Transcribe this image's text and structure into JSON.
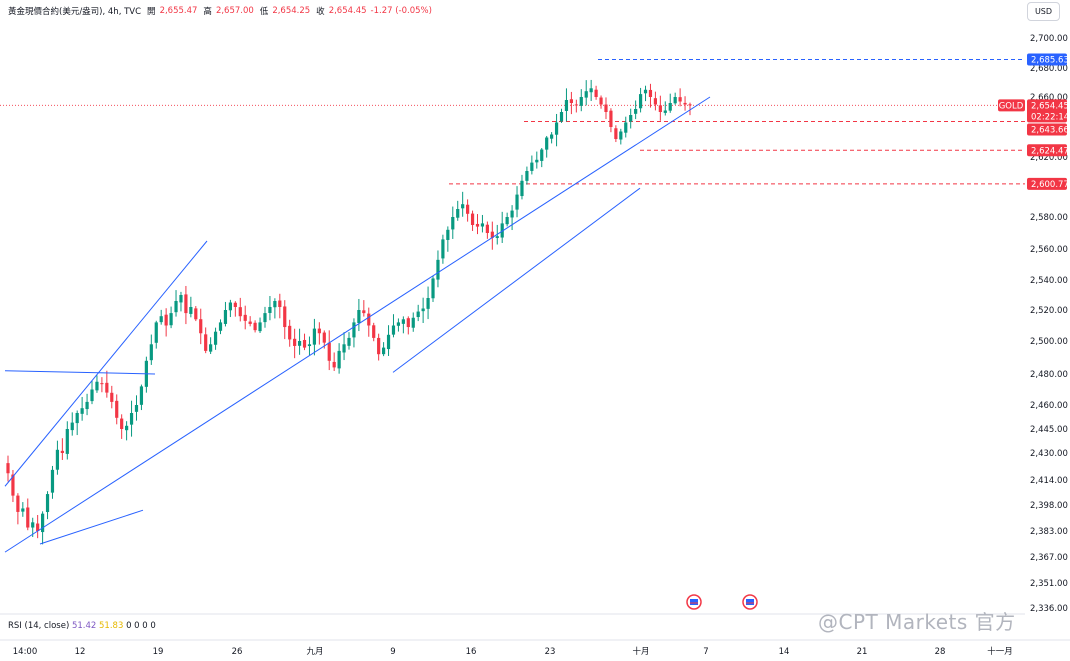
{
  "header": {
    "title": "黃金現價合約(美元/盎司), 4h, TVC",
    "open_label": "開",
    "open": "2,655.47",
    "high_label": "高",
    "high": "2,657.00",
    "low_label": "低",
    "low": "2,654.25",
    "close_label": "收",
    "close": "2,654.45",
    "change": "-1.27 (-0.05%)"
  },
  "currency_button": "USD",
  "symbol_tag": "GOLD",
  "price_tags": {
    "current": "2,654.45",
    "countdown": "02:22:14",
    "level_top": "2,685.63",
    "level_1": "2,643.66",
    "level_2": "2,624.47",
    "level_3": "2,600.77"
  },
  "rsi": {
    "label": "RSI (14, close)",
    "value1": "51.42",
    "value2": "51.83",
    "extra": "0 0 0 0"
  },
  "watermark": "@CPT Markets 官方",
  "colors": {
    "up": "#089981",
    "down": "#f23645",
    "trendline": "#2962ff",
    "level": "#f23645",
    "top_level": "#2962ff"
  },
  "chart_data": {
    "type": "candlestick",
    "title": "黃金現價合約(美元/盎司), 4h, TVC",
    "y_ticks": [
      "2,700.00",
      "2,680.00",
      "2,660.00",
      "2,620.00",
      "2,580.00",
      "2,560.00",
      "2,540.00",
      "2,520.00",
      "2,500.00",
      "2,480.00",
      "2,460.00",
      "2,445.00",
      "2,430.00",
      "2,414.00",
      "2,398.00",
      "2,383.00",
      "2,367.00",
      "2,351.00",
      "2,336.00"
    ],
    "x_ticks": [
      "14:00",
      "12",
      "19",
      "26",
      "九月",
      "9",
      "16",
      "23",
      "十月",
      "7",
      "14",
      "21",
      "28",
      "十一月"
    ],
    "price_range": [
      2336,
      2700
    ],
    "closes": [
      2418,
      2404,
      2394,
      2396,
      2385,
      2388,
      2383,
      2393,
      2405,
      2420,
      2432,
      2430,
      2445,
      2449,
      2455,
      2458,
      2462,
      2470,
      2475,
      2474,
      2468,
      2462,
      2452,
      2445,
      2447,
      2455,
      2460,
      2472,
      2488,
      2498,
      2512,
      2516,
      2510,
      2518,
      2526,
      2530,
      2518,
      2522,
      2514,
      2505,
      2494,
      2498,
      2506,
      2512,
      2520,
      2525,
      2522,
      2516,
      2513,
      2511,
      2507,
      2512,
      2518,
      2522,
      2526,
      2522,
      2509,
      2501,
      2497,
      2500,
      2496,
      2498,
      2508,
      2505,
      2499,
      2488,
      2484,
      2494,
      2498,
      2502,
      2512,
      2520,
      2518,
      2510,
      2502,
      2492,
      2496,
      2504,
      2510,
      2512,
      2514,
      2509,
      2515,
      2519,
      2521,
      2528,
      2541,
      2553,
      2566,
      2572,
      2580,
      2585,
      2588,
      2582,
      2575,
      2574,
      2576,
      2570,
      2567,
      2568,
      2576,
      2580,
      2584,
      2594,
      2603,
      2610,
      2616,
      2618,
      2625,
      2633,
      2635,
      2643,
      2650,
      2658,
      2656,
      2655,
      2660,
      2664,
      2666,
      2660,
      2655,
      2650,
      2640,
      2632,
      2637,
      2643,
      2648,
      2652,
      2662,
      2665,
      2660,
      2655,
      2650,
      2651,
      2656,
      2660,
      2657,
      2655,
      2654.45
    ],
    "horizontal_levels": [
      2685.63,
      2643.66,
      2624.47,
      2600.77
    ],
    "current_price": 2654.45
  }
}
